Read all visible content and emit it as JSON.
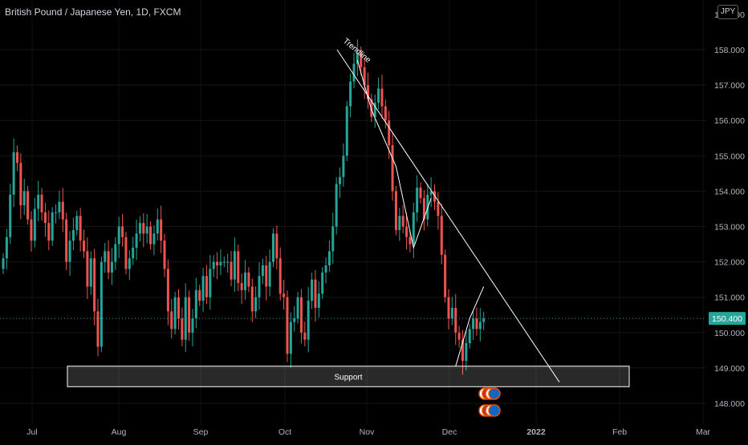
{
  "header": {
    "title": "British Pound / Japanese Yen, 1D, FXCM",
    "currency_badge": "JPY"
  },
  "colors": {
    "background": "#000000",
    "up_candle": "#26a69a",
    "down_candle": "#ef5350",
    "price_badge": "#26a69a",
    "drawing": "#ffffff",
    "axis_text": "#b2b5be"
  },
  "chart_data": {
    "type": "candlestick",
    "symbol": "GBPJPY",
    "timeframe": "1D",
    "x_ticks": [
      "Jul",
      "Aug",
      "Sep",
      "Oct",
      "Nov",
      "Dec",
      "2022",
      "Feb",
      "Mar"
    ],
    "y_ticks": [
      "148.000",
      "149.000",
      "150.000",
      "151.000",
      "152.000",
      "153.000",
      "154.000",
      "155.000",
      "156.000",
      "157.000",
      "158.000"
    ],
    "ylim": [
      147.9,
      159.0
    ],
    "last_price": "150.400",
    "closes": [
      152.1,
      152.7,
      153.9,
      155.1,
      154.8,
      153.6,
      154.0,
      153.2,
      152.6,
      153.5,
      153.9,
      153.4,
      153.1,
      152.6,
      153.4,
      153.4,
      153.7,
      153.2,
      152.0,
      152.6,
      152.9,
      153.3,
      152.6,
      152.3,
      151.3,
      152.1,
      150.6,
      149.6,
      152.0,
      152.3,
      151.7,
      152.0,
      152.5,
      153.0,
      152.7,
      151.8,
      152.1,
      152.4,
      152.8,
      153.1,
      152.8,
      153.0,
      152.5,
      152.8,
      153.2,
      152.6,
      151.8,
      150.6,
      150.1,
      151.0,
      150.4,
      149.8,
      151.0,
      150.0,
      150.4,
      151.2,
      150.9,
      151.6,
      151.0,
      151.8,
      152.0,
      151.9,
      152.0,
      152.0,
      152.0,
      151.5,
      152.3,
      151.4,
      151.2,
      151.7,
      151.3,
      150.6,
      151.0,
      151.6,
      151.9,
      151.3,
      152.0,
      152.8,
      152.1,
      151.1,
      151.0,
      149.4,
      150.3,
      150.4,
      151.0,
      150.0,
      149.8,
      150.9,
      151.5,
      150.7,
      151.1,
      151.7,
      151.9,
      152.3,
      153.0,
      154.2,
      154.4,
      155.0,
      156.4,
      157.1,
      157.6,
      157.9,
      157.5,
      157.0,
      156.6,
      156.1,
      156.5,
      156.9,
      156.4,
      156.0,
      155.3,
      154.0,
      152.9,
      153.3,
      153.0,
      152.7,
      152.5,
      153.4,
      154.1,
      153.8,
      153.2,
      153.9,
      154.0,
      153.7,
      153.3,
      152.2,
      151.0,
      150.4,
      150.7,
      150.0,
      149.8,
      149.2,
      149.7,
      150.1,
      150.4,
      150.1,
      150.3,
      150.4
    ],
    "events": [
      {
        "x_index": 130,
        "y": 148.7
      },
      {
        "x_index": 130,
        "y": 148.2
      }
    ],
    "drawings": [
      {
        "type": "trendline",
        "label": "Trendline",
        "points": [
          [
            100,
            158.0
          ],
          [
            153,
            148.6
          ]
        ]
      },
      {
        "type": "support_zone",
        "label": "Support",
        "y_range": [
          148.47,
          149.05
        ],
        "x_range": [
          -2,
          133
        ]
      },
      {
        "type": "trendline",
        "label": "",
        "points": [
          [
            101,
            157.7
          ],
          [
            105,
            156.3
          ],
          [
            112,
            154.7
          ],
          [
            117,
            152.4
          ],
          [
            122,
            153.8
          ]
        ]
      },
      {
        "type": "trendline",
        "label": "",
        "points": [
          [
            129,
            149.05
          ],
          [
            133,
            150.4
          ],
          [
            137,
            151.3
          ]
        ]
      }
    ]
  }
}
